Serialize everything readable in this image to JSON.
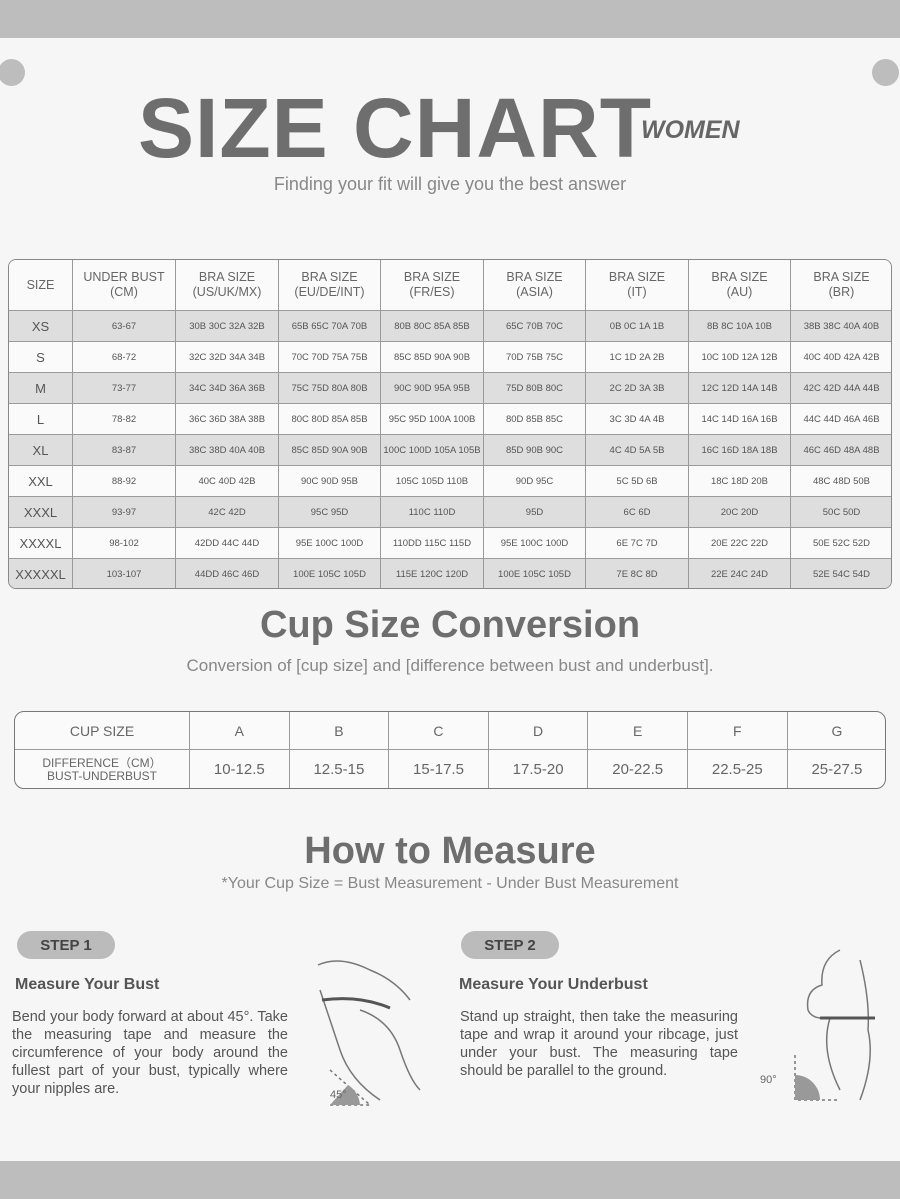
{
  "header": {
    "title": "SIZE CHART",
    "tag": "WOMEN",
    "subtitle": "Finding your fit will give you the best answer"
  },
  "size_table": {
    "headers": [
      [
        "SIZE"
      ],
      [
        "UNDER BUST",
        "(CM)"
      ],
      [
        "BRA SIZE",
        "(US/UK/MX)"
      ],
      [
        "BRA SIZE",
        "(EU/DE/INT)"
      ],
      [
        "BRA SIZE",
        "(FR/ES)"
      ],
      [
        "BRA SIZE",
        "(ASIA)"
      ],
      [
        "BRA SIZE",
        "(IT)"
      ],
      [
        "BRA SIZE",
        "(AU)"
      ],
      [
        "BRA SIZE",
        "(BR)"
      ]
    ],
    "rows": [
      [
        "XS",
        "63-67",
        "30B 30C 32A 32B",
        "65B 65C 70A 70B",
        "80B 80C 85A 85B",
        "65C 70B 70C",
        "0B 0C 1A 1B",
        "8B 8C 10A 10B",
        "38B 38C 40A 40B"
      ],
      [
        "S",
        "68-72",
        "32C 32D 34A 34B",
        "70C 70D 75A 75B",
        "85C 85D 90A 90B",
        "70D 75B 75C",
        "1C 1D 2A 2B",
        "10C 10D 12A 12B",
        "40C 40D 42A 42B"
      ],
      [
        "M",
        "73-77",
        "34C 34D 36A 36B",
        "75C 75D 80A 80B",
        "90C 90D 95A 95B",
        "75D 80B 80C",
        "2C 2D 3A 3B",
        "12C 12D 14A 14B",
        "42C 42D 44A 44B"
      ],
      [
        "L",
        "78-82",
        "36C 36D 38A 38B",
        "80C 80D 85A 85B",
        "95C 95D 100A 100B",
        "80D 85B 85C",
        "3C 3D 4A 4B",
        "14C 14D 16A 16B",
        "44C 44D 46A 46B"
      ],
      [
        "XL",
        "83-87",
        "38C 38D 40A 40B",
        "85C 85D 90A 90B",
        "100C 100D 105A 105B",
        "85D 90B 90C",
        "4C 4D 5A 5B",
        "16C 16D 18A 18B",
        "46C 46D 48A 48B"
      ],
      [
        "XXL",
        "88-92",
        "40C 40D 42B",
        "90C 90D 95B",
        "105C 105D 110B",
        "90D 95C",
        "5C 5D 6B",
        "18C 18D 20B",
        "48C 48D 50B"
      ],
      [
        "XXXL",
        "93-97",
        "42C 42D",
        "95C 95D",
        "110C 110D",
        "95D",
        "6C 6D",
        "20C 20D",
        "50C 50D"
      ],
      [
        "XXXXL",
        "98-102",
        "42DD 44C 44D",
        "95E 100C 100D",
        "110DD 115C 115D",
        "95E 100C 100D",
        "6E 7C 7D",
        "20E 22C 22D",
        "50E 52C 52D"
      ],
      [
        "XXXXXL",
        "103-107",
        "44DD 46C 46D",
        "100E 105C 105D",
        "115E 120C 120D",
        "100E 105C 105D",
        "7E 8C 8D",
        "22E 24C 24D",
        "52E 54C 54D"
      ]
    ]
  },
  "cup_section": {
    "title": "Cup Size Conversion",
    "subtitle": "Conversion of [cup size] and [difference between bust and underbust].",
    "table": {
      "cup_label": "CUP SIZE",
      "cups": [
        "A",
        "B",
        "C",
        "D",
        "E",
        "F",
        "G"
      ],
      "diff_label": [
        "DIFFERENCE（CM）",
        "BUST-UNDERBUST"
      ],
      "diffs": [
        "10-12.5",
        "12.5-15",
        "15-17.5",
        "17.5-20",
        "20-22.5",
        "22.5-25",
        "25-27.5"
      ]
    }
  },
  "measure": {
    "title": "How to Measure",
    "note": "*Your Cup Size = Bust Measurement - Under Bust Measurement",
    "steps": [
      {
        "label": "STEP 1",
        "heading": "Measure Your Bust",
        "text": "Bend your body forward at about 45°. Take the measuring tape and measure the circumference of your body around the fullest part of your bust, typically where your nipples are.",
        "angle": "45°"
      },
      {
        "label": "STEP 2",
        "heading": "Measure Your Underbust",
        "text": "Stand up straight, then take the measuring tape and wrap it around your ribcage, just under your bust. The measuring tape should be parallel to the ground.",
        "angle": "90°"
      }
    ]
  }
}
